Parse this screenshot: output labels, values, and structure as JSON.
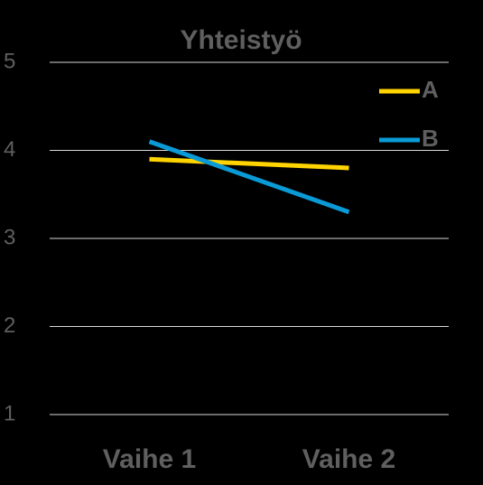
{
  "chart_data": {
    "type": "line",
    "title": "Yhteistyö",
    "categories": [
      "Vaihe 1",
      "Vaihe 2"
    ],
    "series": [
      {
        "name": "A",
        "color": "#ffd400",
        "values": [
          3.9,
          3.8
        ]
      },
      {
        "name": "B",
        "color": "#0a9ad6",
        "values": [
          4.1,
          3.3
        ]
      }
    ],
    "ylim": [
      1,
      5
    ],
    "yticks": [
      1,
      2,
      3,
      4,
      5
    ],
    "grid": true,
    "legend": "top-right"
  }
}
